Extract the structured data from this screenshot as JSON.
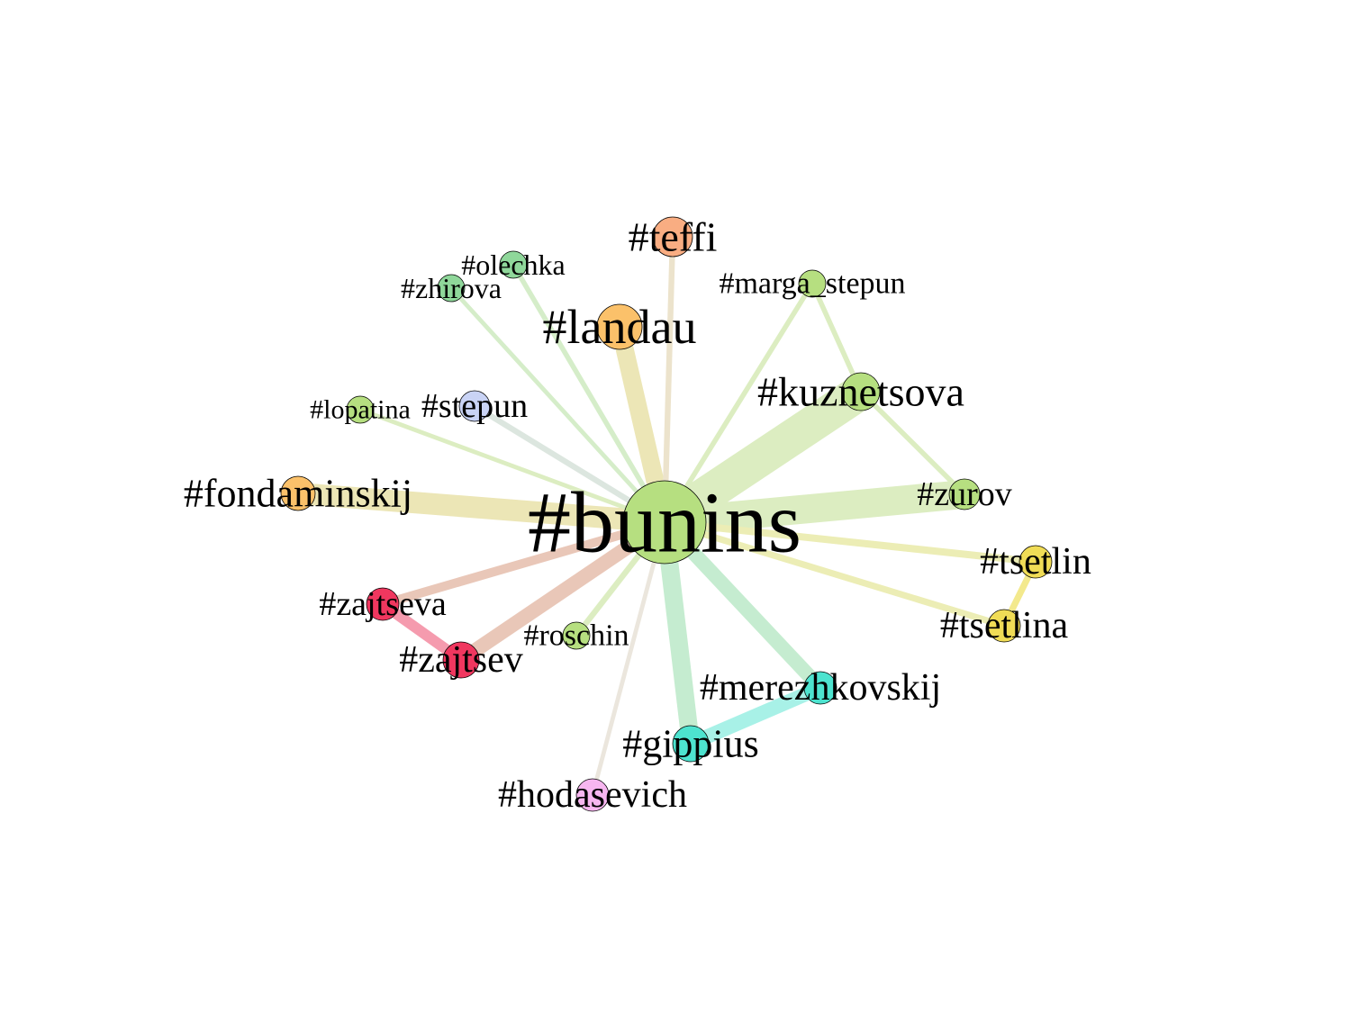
{
  "network": {
    "nodes": [
      {
        "id": "bunins",
        "label": "#bunins",
        "color": "#b6df80"
      },
      {
        "id": "teffi",
        "label": "#teffi",
        "color": "#f9ad82"
      },
      {
        "id": "olechka",
        "label": "#olechka",
        "color": "#8fd79a"
      },
      {
        "id": "zhirova",
        "label": "#zhirova",
        "color": "#8fd79a"
      },
      {
        "id": "marga_stepun",
        "label": "#marga_stepun",
        "color": "#b6df80"
      },
      {
        "id": "landau",
        "label": "#landau",
        "color": "#fbc16a"
      },
      {
        "id": "kuznetsova",
        "label": "#kuznetsova",
        "color": "#b6df80"
      },
      {
        "id": "lopatina",
        "label": "#lopatina",
        "color": "#b6df80"
      },
      {
        "id": "stepun",
        "label": "#stepun",
        "color": "#c9d3f5"
      },
      {
        "id": "fondaminskij",
        "label": "#fondaminskij",
        "color": "#fbc16a"
      },
      {
        "id": "zurov",
        "label": "#zurov",
        "color": "#b6df80"
      },
      {
        "id": "tsetlin",
        "label": "#tsetlin",
        "color": "#f0dc56"
      },
      {
        "id": "zajtseva",
        "label": "#zajtseva",
        "color": "#f0375f"
      },
      {
        "id": "tsetlina",
        "label": "#tsetlina",
        "color": "#f0dc56"
      },
      {
        "id": "roschin",
        "label": "#roschin",
        "color": "#b6df80"
      },
      {
        "id": "zajtsev",
        "label": "#zajtsev",
        "color": "#f0375f"
      },
      {
        "id": "merezhkovskij",
        "label": "#merezhkovskij",
        "color": "#4de3cf"
      },
      {
        "id": "gippius",
        "label": "#gippius",
        "color": "#4de3cf"
      },
      {
        "id": "hodasevich",
        "label": "#hodasevich",
        "color": "#f7b6f0"
      }
    ],
    "edges": [
      {
        "source": "bunins",
        "target": "kuznetsova",
        "weight": 10,
        "color": "#dcedc1"
      },
      {
        "source": "bunins",
        "target": "zurov",
        "weight": 8,
        "color": "#dcedc1"
      },
      {
        "source": "bunins",
        "target": "fondaminskij",
        "weight": 6,
        "color": "#ece6b6"
      },
      {
        "source": "bunins",
        "target": "landau",
        "weight": 5,
        "color": "#ece6b6"
      },
      {
        "source": "bunins",
        "target": "gippius",
        "weight": 5,
        "color": "#c5ecd0"
      },
      {
        "source": "bunins",
        "target": "merezhkovskij",
        "weight": 4,
        "color": "#c5ecd0"
      },
      {
        "source": "bunins",
        "target": "zajtsev",
        "weight": 4,
        "color": "#e9c7b8"
      },
      {
        "source": "bunins",
        "target": "zajtseva",
        "weight": 2.5,
        "color": "#e9c7b8"
      },
      {
        "source": "bunins",
        "target": "tsetlin",
        "weight": 2,
        "color": "#ecedb5"
      },
      {
        "source": "bunins",
        "target": "tsetlina",
        "weight": 1.8,
        "color": "#ecedb5"
      },
      {
        "source": "bunins",
        "target": "teffi",
        "weight": 1.6,
        "color": "#ece3cc"
      },
      {
        "source": "bunins",
        "target": "marga_stepun",
        "weight": 1.4,
        "color": "#dcedc1"
      },
      {
        "source": "bunins",
        "target": "olechka",
        "weight": 1.4,
        "color": "#d5edc9"
      },
      {
        "source": "bunins",
        "target": "zhirova",
        "weight": 1.2,
        "color": "#d5edc9"
      },
      {
        "source": "bunins",
        "target": "stepun",
        "weight": 1.6,
        "color": "#dce6df"
      },
      {
        "source": "bunins",
        "target": "lopatina",
        "weight": 1.2,
        "color": "#dcedc1"
      },
      {
        "source": "bunins",
        "target": "roschin",
        "weight": 1.6,
        "color": "#dcedc1"
      },
      {
        "source": "bunins",
        "target": "hodasevich",
        "weight": 1.2,
        "color": "#ebe6dd"
      },
      {
        "source": "kuznetsova",
        "target": "marga_stepun",
        "weight": 1.4,
        "color": "#dcedc1"
      },
      {
        "source": "kuznetsova",
        "target": "zurov",
        "weight": 1.4,
        "color": "#dcedc1"
      },
      {
        "source": "zajtsev",
        "target": "zajtseva",
        "weight": 3,
        "color": "#f59bae"
      },
      {
        "source": "gippius",
        "target": "merezhkovskij",
        "weight": 4,
        "color": "#a8f1e7"
      },
      {
        "source": "tsetlin",
        "target": "tsetlina",
        "weight": 1.8,
        "color": "#f3e98d"
      }
    ]
  }
}
